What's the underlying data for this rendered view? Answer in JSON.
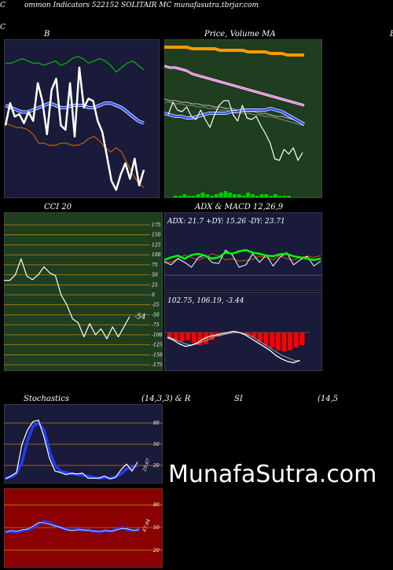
{
  "header": {
    "text": "ommon  Indicators 522152  SOLITAIR MC munafasutra.tbrjar.com",
    "left_letter": "C",
    "right_letter": "C"
  },
  "panels": {
    "bollinger": {
      "title": "B",
      "right_letter": "B"
    },
    "price": {
      "title_a": "Price,",
      "title_b": "Volume",
      "title_c": "MA"
    },
    "cci": {
      "title": "CCI 20",
      "value_label": "-54"
    },
    "adx": {
      "title": "ADX  & MACD 12,26,9",
      "label": "ADX: 21.7 +DY: 15.26  -DY: 23.71"
    },
    "macd": {
      "label": "102.75,  106.19,  -3.44"
    },
    "stoch": {
      "title_a": "Stochastics",
      "title_b": "(14,3,3) & R",
      "title_c": "SI",
      "title_d": "(14,5",
      "value_label": "29.67"
    },
    "rsi": {
      "value_label": "47.64"
    }
  },
  "watermark": "MunafaSutra.com",
  "colors": {
    "navy": "#1a1a3a",
    "green": "#1f3d1f",
    "darkred": "#8b0000",
    "blue": "#1e3cff",
    "orange": "#ff8c00",
    "lime": "#00ff00",
    "white": "#ffffff"
  },
  "chart_data": [
    {
      "id": "bollinger",
      "type": "line",
      "series": [
        {
          "key": "upper",
          "color": "#00c000",
          "values": [
            60,
            60,
            61,
            62,
            61,
            60,
            60,
            59,
            60,
            61,
            59,
            60,
            62,
            63,
            62,
            60,
            61,
            62,
            61,
            59,
            56,
            58,
            60,
            61,
            59,
            57
          ]
        },
        {
          "key": "mid_band",
          "color": "#3050ff",
          "values": [
            41,
            40,
            39,
            38,
            38,
            39,
            40,
            41,
            42,
            41,
            40,
            40,
            41,
            41,
            41,
            40,
            40,
            41,
            42,
            42,
            41,
            40,
            38,
            36,
            34,
            33
          ]
        },
        {
          "key": "lower",
          "color": "#c06000",
          "values": [
            33,
            32,
            31,
            31,
            30,
            28,
            24,
            24,
            23,
            23,
            24,
            24,
            23,
            23,
            24,
            26,
            27,
            25,
            22,
            20,
            22,
            20,
            15,
            10,
            6,
            4
          ]
        },
        {
          "key": "close",
          "color": "#ffffff",
          "values": [
            32,
            42,
            36,
            37,
            33,
            38,
            34,
            51,
            43,
            28,
            48,
            53,
            32,
            30,
            51,
            27,
            58,
            40,
            44,
            43,
            34,
            29,
            18,
            7,
            3,
            10,
            15,
            8,
            17,
            5,
            12
          ]
        }
      ]
    },
    {
      "id": "price_volume_ma",
      "type": "line",
      "series": [
        {
          "key": "ma_orange",
          "color": "#ff9a00",
          "values": [
            95,
            95,
            95,
            95,
            95,
            94,
            94,
            94,
            94,
            94,
            93,
            93,
            93,
            93,
            93,
            92,
            92,
            92,
            92,
            91,
            91,
            91,
            90,
            90,
            90,
            90
          ]
        },
        {
          "key": "ma_pink",
          "color": "#ff60ff",
          "values": [
            83,
            82,
            82,
            81,
            80,
            78,
            77,
            76,
            75,
            74,
            73,
            72,
            71,
            70,
            69,
            68,
            67,
            66,
            65,
            64,
            63,
            62,
            61,
            60,
            59,
            58
          ]
        },
        {
          "key": "ma_gray1",
          "color": "#bbbbbb",
          "values": [
            62,
            61,
            61,
            60,
            60,
            59,
            59,
            58,
            58,
            57,
            57,
            56,
            56,
            55,
            55,
            54,
            54,
            53,
            53,
            52,
            51,
            51,
            50,
            49,
            48,
            47
          ]
        },
        {
          "key": "ma_gray2",
          "color": "#888888",
          "values": [
            60,
            60,
            59,
            59,
            58,
            58,
            57,
            57,
            56,
            56,
            55,
            55,
            54,
            54,
            53,
            53,
            52,
            52,
            51,
            51,
            50,
            49,
            48,
            47,
            46,
            45
          ]
        },
        {
          "key": "ma_blue",
          "color": "#3050ff",
          "values": [
            53,
            52,
            51,
            51,
            50,
            50,
            51,
            52,
            53,
            53,
            53,
            53,
            54,
            54,
            55,
            55,
            55,
            55,
            55,
            56,
            55,
            54,
            52,
            50,
            48,
            46
          ]
        },
        {
          "key": "close",
          "color": "#ffffff",
          "values": [
            52,
            60,
            55,
            54,
            57,
            51,
            49,
            55,
            49,
            44,
            52,
            58,
            61,
            61,
            52,
            48,
            58,
            50,
            49,
            51,
            45,
            40,
            34,
            24,
            23,
            30,
            27,
            31,
            23,
            28
          ]
        },
        {
          "key": "volume",
          "color": "#00cc00",
          "values": [
            1,
            1,
            2,
            1,
            1,
            2,
            3,
            2,
            1,
            2,
            3,
            4,
            3,
            2,
            2,
            1,
            3,
            2,
            1,
            2,
            2,
            1,
            2,
            1,
            1,
            1
          ]
        }
      ]
    },
    {
      "id": "cci",
      "type": "line",
      "ylim": [
        -175,
        175
      ],
      "yticks": [
        175,
        150,
        125,
        100,
        75,
        50,
        25,
        0,
        -25,
        -50,
        -75,
        -100,
        -125,
        -150,
        -175
      ],
      "series": [
        {
          "key": "cci",
          "color": "#ffffff",
          "values": [
            36,
            36,
            50,
            90,
            47,
            38,
            50,
            70,
            55,
            48,
            0,
            -25,
            -60,
            -70,
            -105,
            -72,
            -100,
            -85,
            -110,
            -80,
            -105,
            -80,
            -54
          ]
        }
      ]
    },
    {
      "id": "adx",
      "type": "line",
      "series": [
        {
          "key": "plus_dy",
          "color": "#00ff00",
          "values": [
            48,
            52,
            55,
            50,
            56,
            58,
            55,
            50,
            52,
            60,
            58,
            62,
            64,
            60,
            58,
            55,
            54,
            57,
            58,
            54,
            52,
            50,
            48,
            50
          ]
        },
        {
          "key": "minus_dy",
          "color": "#c06000",
          "values": [
            46,
            44,
            50,
            56,
            52,
            48,
            52,
            58,
            55,
            48,
            50,
            46,
            47,
            49,
            54,
            52,
            48,
            55,
            50,
            48,
            52,
            54,
            52,
            55
          ]
        },
        {
          "key": "adx",
          "color": "#ffffff",
          "values": [
            45,
            40,
            50,
            44,
            36,
            52,
            56,
            44,
            42,
            64,
            56,
            36,
            40,
            58,
            44,
            56,
            38,
            52,
            60,
            40,
            48,
            54,
            38,
            46
          ]
        }
      ]
    },
    {
      "id": "macd",
      "type": "line",
      "series": [
        {
          "key": "histogram",
          "color": "#ff0000",
          "values": [
            -5,
            -6,
            -7,
            -6,
            -8,
            -10,
            -9,
            -6,
            -3,
            -1,
            0,
            1,
            0,
            -2,
            -4,
            -7,
            -10,
            -12,
            -14,
            -15,
            -14,
            -12,
            -10
          ]
        },
        {
          "key": "macd",
          "color": "#ffffff",
          "values": [
            -4,
            -6,
            -9,
            -11,
            -10,
            -8,
            -5,
            -3,
            -2,
            -1,
            0,
            1,
            0,
            -2,
            -5,
            -8,
            -11,
            -14,
            -18,
            -21,
            -23,
            -24,
            -22
          ]
        },
        {
          "key": "signal",
          "color": "#aaaaaa",
          "values": [
            -3,
            -5,
            -7,
            -9,
            -10,
            -9,
            -7,
            -5,
            -3,
            -2,
            -1,
            0,
            0,
            -1,
            -3,
            -6,
            -9,
            -12,
            -15,
            -18,
            -20,
            -22,
            -23
          ]
        }
      ]
    },
    {
      "id": "stochastics",
      "type": "line",
      "ylim": [
        0,
        100
      ],
      "yticks": [
        80,
        50,
        20
      ],
      "series": [
        {
          "key": "k",
          "color": "#ffffff",
          "values": [
            1,
            5,
            10,
            50,
            70,
            82,
            84,
            60,
            30,
            12,
            10,
            7,
            9,
            8,
            9,
            2,
            2,
            2,
            5,
            1,
            3,
            14,
            22,
            12,
            25
          ]
        },
        {
          "key": "d",
          "color": "#1e3cff",
          "values": [
            2,
            4,
            8,
            25,
            55,
            75,
            80,
            70,
            40,
            20,
            12,
            10,
            8,
            7,
            6,
            5,
            3,
            2,
            3,
            2,
            4,
            8,
            15,
            17,
            20
          ]
        }
      ]
    },
    {
      "id": "rsi",
      "type": "line",
      "ylim": [
        0,
        100
      ],
      "yticks": [
        80,
        50,
        20
      ],
      "series": [
        {
          "key": "rsi",
          "color": "#1e3cff",
          "values": [
            44,
            45,
            44,
            46,
            47,
            50,
            55,
            58,
            56,
            52,
            50,
            48,
            46,
            48,
            46,
            47,
            45,
            44,
            46,
            45,
            48,
            50,
            47,
            46,
            48
          ]
        },
        {
          "key": "rsi_thin",
          "color": "#ffffff",
          "values": [
            44,
            46,
            45,
            47,
            48,
            52,
            57,
            56,
            54,
            52,
            50,
            47,
            46,
            47,
            47,
            46,
            45,
            45,
            46,
            45,
            47,
            49,
            48,
            46,
            47
          ]
        }
      ]
    }
  ]
}
